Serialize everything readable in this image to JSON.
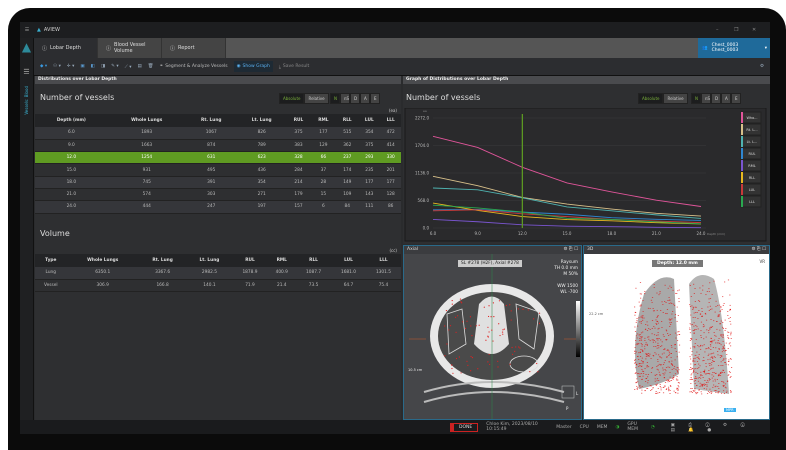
{
  "app": {
    "title": "AVIEW",
    "window_controls": [
      "minimize",
      "restore",
      "close"
    ]
  },
  "tabs": [
    {
      "label": "Lobar Depth",
      "active": true
    },
    {
      "label": "Blood Vessel Volume"
    },
    {
      "label": "Report"
    }
  ],
  "patient": {
    "line1": "Chest_0003",
    "line2": "Chest_0003"
  },
  "toolbar": {
    "segment": "Segment & Analyze Vessels",
    "show_graph": "Show Graph",
    "save": "Save Result"
  },
  "sidebar": {
    "label": "Vessels: Blood"
  },
  "left_panel": {
    "title": "Distributions over Lobar Depth",
    "vessels": {
      "title": "Number of vessels",
      "unit": "(ea)",
      "modes": [
        "Absolute",
        "Relative"
      ],
      "metrics": [
        "N",
        "nS",
        "D",
        "A",
        "E"
      ],
      "columns": [
        "Depth (mm)",
        "Whole Lungs",
        "Rt. Lung",
        "Lt. Lung",
        "RUL",
        "RML",
        "RLL",
        "LUL",
        "LLL"
      ],
      "rows": [
        [
          "6.0",
          "1893",
          "1067",
          "826",
          "375",
          "177",
          "515",
          "354",
          "472"
        ],
        [
          "9.0",
          "1663",
          "874",
          "789",
          "383",
          "129",
          "362",
          "375",
          "414"
        ],
        [
          "12.0",
          "1254",
          "631",
          "623",
          "328",
          "66",
          "237",
          "293",
          "330"
        ],
        [
          "15.0",
          "931",
          "495",
          "436",
          "284",
          "37",
          "174",
          "235",
          "201"
        ],
        [
          "18.0",
          "745",
          "391",
          "354",
          "214",
          "28",
          "149",
          "177",
          "177"
        ],
        [
          "21.0",
          "574",
          "303",
          "271",
          "179",
          "15",
          "109",
          "143",
          "128"
        ],
        [
          "24.0",
          "444",
          "247",
          "197",
          "157",
          "6",
          "84",
          "111",
          "86"
        ]
      ],
      "selected_row": 2
    },
    "volume": {
      "title": "Volume",
      "unit": "(cc)",
      "columns": [
        "Type",
        "Whole Lungs",
        "Rt. Lung",
        "Lt. Lung",
        "RUL",
        "RML",
        "RLL",
        "LUL",
        "LLL"
      ],
      "rows": [
        [
          "Lung",
          "6350.1",
          "3367.6",
          "2982.5",
          "1878.9",
          "400.9",
          "1087.7",
          "1681.0",
          "1301.5"
        ],
        [
          "Vessel",
          "306.9",
          "166.8",
          "140.1",
          "71.9",
          "21.4",
          "73.5",
          "64.7",
          "75.4"
        ]
      ]
    }
  },
  "right_panel": {
    "title": "Graph of Distributions over Lobar Depth",
    "chart_title": "Number of vessels"
  },
  "chart_data": {
    "type": "line",
    "title": "Number of vessels",
    "ylabel": "ea",
    "xlabel": "Depth (mm)",
    "x": [
      6,
      9,
      12,
      15,
      18,
      21,
      24
    ],
    "xticks": [
      "6.0",
      "9.0",
      "12.0",
      "15.0",
      "18.0",
      "21.0",
      "24.0"
    ],
    "yticks": [
      "0.0",
      "568.0",
      "1136.0",
      "1704.0",
      "2272.0"
    ],
    "ylim": [
      0,
      2272
    ],
    "cursor_x": 12,
    "grid": true,
    "legend": "right",
    "series": [
      {
        "name": "Who...",
        "color": "#e0559a",
        "values": [
          1893,
          1663,
          1254,
          931,
          745,
          574,
          444
        ]
      },
      {
        "name": "Rt. L...",
        "color": "#d8c08a",
        "values": [
          1067,
          874,
          631,
          495,
          391,
          303,
          247
        ]
      },
      {
        "name": "Lt. L...",
        "color": "#4fb3b0",
        "values": [
          826,
          789,
          623,
          436,
          354,
          271,
          197
        ]
      },
      {
        "name": "RUL",
        "color": "#2f86d0",
        "values": [
          375,
          383,
          328,
          284,
          214,
          179,
          157
        ]
      },
      {
        "name": "RML",
        "color": "#7a55d0",
        "values": [
          177,
          129,
          66,
          37,
          28,
          15,
          6
        ]
      },
      {
        "name": "RLL",
        "color": "#e8b820",
        "values": [
          515,
          362,
          237,
          174,
          149,
          109,
          84
        ]
      },
      {
        "name": "LUL",
        "color": "#c83a3a",
        "values": [
          354,
          375,
          293,
          235,
          177,
          143,
          111
        ]
      },
      {
        "name": "LLL",
        "color": "#2aa850",
        "values": [
          472,
          414,
          330,
          201,
          177,
          128,
          86
        ]
      }
    ]
  },
  "axial": {
    "title": "Axial",
    "slice": "SL #278 (H2F), Axial #278",
    "kernel": "Raysum",
    "th": "TH 0.0 mm",
    "m": "M 50%",
    "ww": "WW  1500",
    "wl": "WL   -700",
    "scale": "10.5 cm",
    "orient_l": "L",
    "orient_p": "P"
  },
  "view3d": {
    "title": "3D",
    "depth": "Depth: 12.0 mm",
    "vr": "VR",
    "scale": "22.2 cm",
    "badge": "MPR"
  },
  "status": {
    "state": "DONE",
    "user": "Chloe Kim, 2023/08/10 10:15:49",
    "role": "Master",
    "cpu": "CPU",
    "mem": "MEM",
    "gpu": "GPU MEM"
  }
}
